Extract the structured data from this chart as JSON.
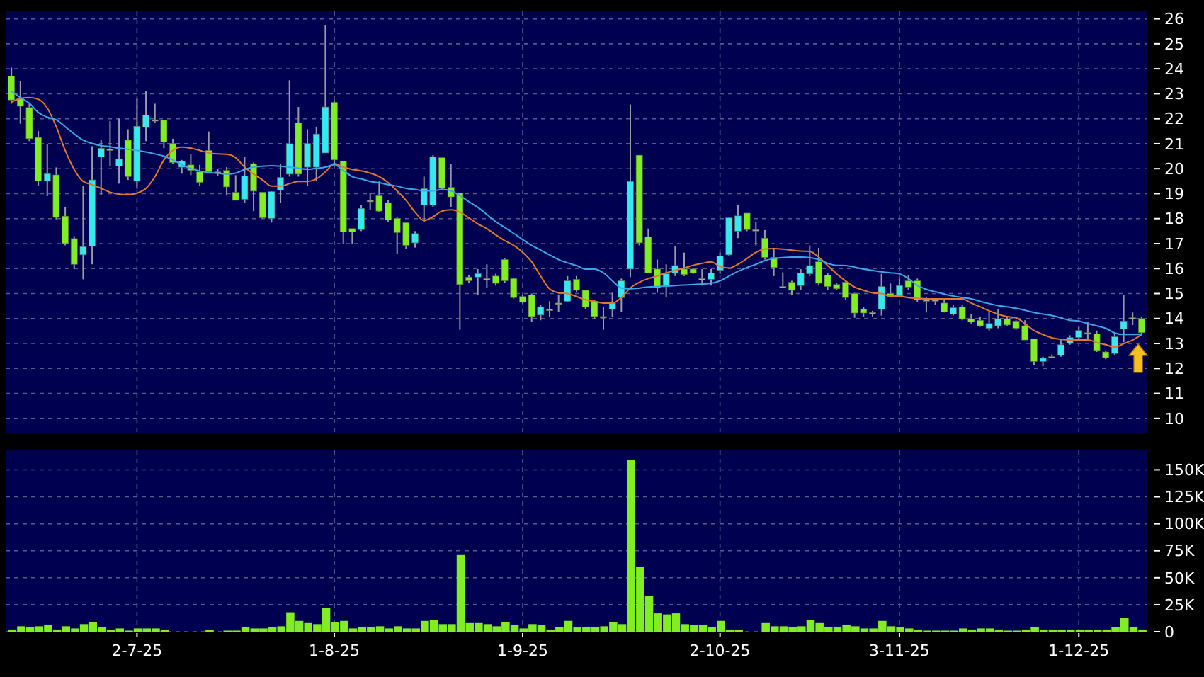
{
  "chart_data": [
    {
      "type": "candlestick",
      "categories": [
        null,
        null,
        null,
        null,
        null,
        null,
        null,
        null,
        null,
        null,
        null,
        null,
        null,
        null,
        null,
        null,
        null,
        null,
        null,
        null,
        null,
        null,
        null,
        null,
        null,
        null,
        null,
        null,
        null,
        null,
        null,
        null,
        null,
        null,
        null,
        null,
        null,
        null,
        null,
        null,
        null,
        null,
        null,
        null,
        null,
        null,
        null,
        null,
        null,
        null,
        null,
        null,
        null,
        null,
        null,
        null,
        null,
        null,
        null,
        null,
        null,
        null,
        null,
        null,
        null,
        null,
        null,
        null,
        null,
        null,
        null,
        null,
        null,
        null,
        null,
        null,
        null,
        null,
        null,
        null,
        null,
        null,
        null,
        null,
        null,
        null,
        null,
        null,
        null,
        null,
        null,
        null,
        null,
        null,
        null,
        null,
        null,
        null,
        null,
        null,
        null,
        null,
        null,
        null,
        null,
        null,
        null,
        null,
        null,
        null,
        null,
        null,
        null,
        null,
        null,
        null,
        null,
        null,
        null,
        null,
        null,
        null,
        null,
        null,
        null,
        null,
        null
      ],
      "ylim": [
        9.4,
        26.3
      ],
      "yticks": [
        10,
        11,
        12,
        13,
        14,
        15,
        16,
        17,
        18,
        19,
        20,
        21,
        22,
        23,
        24,
        25,
        26
      ],
      "grid": true,
      "tick_labels": "y",
      "series": [
        {
          "ohlc": [
            [
              23.7,
              24.05,
              22.6,
              22.75
            ],
            [
              22.8,
              23.5,
              21.8,
              22.5
            ],
            [
              22.45,
              22.6,
              21.1,
              21.2
            ],
            [
              21.25,
              21.5,
              19.3,
              19.5
            ],
            [
              19.5,
              21.0,
              18.9,
              19.8
            ],
            [
              19.75,
              20.05,
              17.97,
              18.05
            ],
            [
              18.1,
              18.45,
              16.93,
              17.0
            ],
            [
              17.2,
              17.3,
              15.98,
              16.17
            ],
            [
              16.55,
              19.3,
              15.57,
              16.88
            ],
            [
              16.9,
              20.9,
              16.17,
              19.55
            ],
            [
              20.48,
              21.15,
              18.96,
              20.82
            ],
            [
              20.78,
              21.9,
              20.1,
              20.78
            ],
            [
              20.1,
              22.0,
              19.4,
              20.38
            ],
            [
              21.14,
              21.58,
              19.55,
              19.68
            ],
            [
              19.5,
              22.8,
              19.2,
              21.7
            ],
            [
              21.67,
              23.1,
              21.1,
              22.15
            ],
            [
              21.96,
              22.6,
              21.85,
              21.96
            ],
            [
              21.94,
              21.94,
              20.82,
              21.07
            ],
            [
              21.01,
              21.2,
              20.2,
              20.25
            ],
            [
              20.06,
              20.35,
              19.8,
              20.3
            ],
            [
              20.15,
              20.57,
              19.74,
              19.93
            ],
            [
              19.87,
              20.15,
              19.3,
              19.45
            ],
            [
              20.73,
              21.49,
              19.82,
              19.87
            ],
            [
              19.87,
              20.0,
              19.7,
              19.87
            ],
            [
              19.93,
              20.06,
              18.92,
              19.27
            ],
            [
              19.05,
              19.74,
              18.73,
              18.73
            ],
            [
              18.77,
              20.48,
              18.64,
              19.7
            ],
            [
              20.2,
              20.25,
              18.3,
              19.1
            ],
            [
              19.06,
              19.06,
              18.0,
              18.03
            ],
            [
              18.01,
              19.1,
              17.84,
              19.08
            ],
            [
              19.13,
              20.2,
              18.64,
              19.65
            ],
            [
              19.78,
              23.54,
              19.68,
              21.0
            ],
            [
              21.83,
              22.47,
              19.68,
              19.78
            ],
            [
              20.06,
              21.58,
              19.3,
              21.01
            ],
            [
              20.06,
              21.68,
              19.49,
              21.39
            ],
            [
              20.63,
              25.75,
              20.63,
              22.47
            ],
            [
              22.66,
              22.72,
              20.16,
              20.35
            ],
            [
              20.31,
              20.31,
              16.99,
              17.46
            ],
            [
              17.6,
              17.6,
              16.99,
              17.46
            ],
            [
              17.56,
              18.54,
              17.5,
              18.41
            ],
            [
              18.73,
              19.02,
              18.35,
              18.73
            ],
            [
              18.92,
              19.49,
              18.26,
              18.3
            ],
            [
              18.64,
              18.73,
              17.88,
              17.94
            ],
            [
              18.01,
              18.07,
              16.59,
              17.44
            ],
            [
              17.84,
              17.84,
              16.78,
              16.93
            ],
            [
              17.03,
              17.5,
              16.84,
              17.4
            ],
            [
              18.54,
              19.68,
              17.88,
              19.2
            ],
            [
              18.54,
              20.54,
              18.45,
              20.48
            ],
            [
              20.44,
              20.44,
              19.17,
              19.21
            ],
            [
              19.25,
              20.2,
              18.45,
              18.87
            ],
            [
              19.02,
              19.02,
              13.55,
              15.36
            ],
            [
              15.66,
              15.74,
              15.41,
              15.51
            ],
            [
              15.66,
              15.98,
              14.94,
              15.8
            ],
            [
              15.6,
              16.17,
              15.22,
              15.6
            ],
            [
              15.7,
              15.79,
              15.32,
              15.41
            ],
            [
              16.36,
              16.4,
              15.41,
              15.51
            ],
            [
              15.6,
              15.64,
              14.8,
              14.84
            ],
            [
              14.88,
              14.94,
              14.6,
              14.65
            ],
            [
              14.94,
              15.0,
              13.86,
              14.08
            ],
            [
              14.14,
              14.56,
              13.93,
              14.47
            ],
            [
              14.37,
              14.69,
              14.08,
              14.37
            ],
            [
              14.62,
              14.94,
              14.27,
              14.62
            ],
            [
              14.69,
              15.7,
              14.65,
              15.51
            ],
            [
              15.57,
              15.7,
              15.07,
              15.13
            ],
            [
              15.13,
              15.13,
              14.37,
              14.46
            ],
            [
              14.69,
              14.75,
              13.98,
              14.08
            ],
            [
              14.08,
              14.46,
              13.55,
              14.08
            ],
            [
              14.37,
              15.03,
              14.08,
              14.62
            ],
            [
              14.84,
              15.6,
              14.27,
              15.51
            ],
            [
              15.98,
              22.57,
              15.66,
              19.49
            ],
            [
              20.54,
              20.54,
              16.93,
              17.03
            ],
            [
              17.27,
              17.6,
              15.83,
              15.83
            ],
            [
              15.98,
              16.36,
              15.03,
              15.22
            ],
            [
              15.32,
              16.17,
              14.84,
              15.79
            ],
            [
              15.83,
              16.9,
              15.7,
              16.12
            ],
            [
              15.98,
              16.64,
              15.7,
              15.76
            ],
            [
              15.98,
              16.02,
              15.79,
              15.83
            ],
            [
              15.6,
              15.98,
              15.32,
              15.6
            ],
            [
              15.57,
              15.98,
              15.32,
              15.83
            ],
            [
              15.93,
              16.64,
              15.79,
              16.51
            ],
            [
              16.55,
              18.07,
              16.51,
              18.03
            ],
            [
              17.5,
              18.54,
              17.22,
              18.11
            ],
            [
              18.22,
              18.22,
              17.5,
              17.56
            ],
            [
              17.56,
              17.88,
              16.93,
              17.56
            ],
            [
              17.22,
              17.54,
              16.36,
              16.45
            ],
            [
              16.45,
              16.83,
              15.7,
              16.04
            ],
            [
              15.28,
              15.85,
              15.22,
              15.28
            ],
            [
              15.45,
              15.51,
              14.94,
              15.13
            ],
            [
              15.32,
              15.98,
              15.13,
              15.83
            ],
            [
              15.79,
              16.93,
              15.7,
              16.12
            ],
            [
              16.27,
              16.83,
              15.32,
              15.41
            ],
            [
              15.74,
              15.83,
              15.13,
              15.28
            ],
            [
              15.36,
              15.41,
              15.13,
              15.19
            ],
            [
              15.45,
              15.51,
              14.75,
              14.84
            ],
            [
              15.0,
              15.03,
              14.03,
              14.22
            ],
            [
              14.37,
              14.46,
              14.08,
              14.22
            ],
            [
              14.24,
              14.31,
              14.08,
              14.24
            ],
            [
              14.37,
              15.79,
              14.12,
              15.28
            ],
            [
              15.0,
              15.4,
              14.84,
              14.88
            ],
            [
              14.9,
              15.6,
              14.84,
              15.32
            ],
            [
              15.51,
              15.74,
              15.13,
              15.26
            ],
            [
              15.51,
              15.6,
              14.65,
              14.75
            ],
            [
              14.75,
              14.84,
              14.24,
              14.75
            ],
            [
              14.75,
              14.8,
              14.56,
              14.75
            ],
            [
              14.62,
              14.75,
              14.24,
              14.27
            ],
            [
              14.18,
              14.56,
              14.12,
              14.43
            ],
            [
              14.46,
              14.56,
              13.93,
              13.99
            ],
            [
              13.99,
              14.18,
              13.8,
              13.86
            ],
            [
              13.93,
              14.08,
              13.67,
              13.71
            ],
            [
              13.61,
              14.27,
              13.52,
              13.8
            ],
            [
              13.71,
              14.37,
              13.61,
              13.99
            ],
            [
              13.99,
              14.08,
              13.71,
              13.74
            ],
            [
              13.9,
              13.93,
              13.55,
              13.61
            ],
            [
              13.71,
              13.93,
              13.14,
              13.14
            ],
            [
              13.18,
              13.18,
              12.15,
              12.28
            ],
            [
              12.28,
              12.47,
              12.09,
              12.41
            ],
            [
              12.47,
              12.56,
              12.41,
              12.47
            ],
            [
              12.53,
              13.14,
              12.47,
              12.95
            ],
            [
              13.01,
              13.33,
              12.95,
              13.24
            ],
            [
              13.24,
              13.67,
              13.14,
              13.52
            ],
            [
              13.43,
              13.86,
              13.14,
              13.43
            ],
            [
              13.39,
              13.52,
              12.66,
              12.72
            ],
            [
              12.66,
              12.72,
              12.37,
              12.43
            ],
            [
              12.6,
              13.37,
              12.53,
              13.27
            ],
            [
              13.58,
              14.94,
              13.05,
              13.9
            ],
            [
              14.03,
              14.24,
              13.74,
              14.03
            ],
            [
              14.0,
              14.08,
              13.37,
              13.43
            ]
          ],
          "colors": [
            "#80ee22",
            "#80ee22",
            "#80ee22",
            "#80ee22",
            "#38e8f0",
            "#80ee22",
            "#80ee22",
            "#80ee22",
            "#38e8f0",
            "#38e8f0",
            "#38e8f0",
            "#a8a8a8",
            "#38e8f0",
            "#80ee22",
            "#38e8f0",
            "#38e8f0",
            "#a8a8a8",
            "#80ee22",
            "#80ee22",
            "#38e8f0",
            "#80ee22",
            "#80ee22",
            "#80ee22",
            "#a8a8a8",
            "#80ee22",
            "#80ee22",
            "#38e8f0",
            "#80ee22",
            "#80ee22",
            "#38e8f0",
            "#38e8f0",
            "#38e8f0",
            "#80ee22",
            "#38e8f0",
            "#38e8f0",
            "#38e8f0",
            "#80ee22",
            "#80ee22",
            "#80ee22",
            "#38e8f0",
            "#a8a8a8",
            "#80ee22",
            "#80ee22",
            "#80ee22",
            "#80ee22",
            "#38e8f0",
            "#38e8f0",
            "#38e8f0",
            "#80ee22",
            "#80ee22",
            "#80ee22",
            "#80ee22",
            "#38e8f0",
            "#a8a8a8",
            "#80ee22",
            "#80ee22",
            "#80ee22",
            "#80ee22",
            "#80ee22",
            "#38e8f0",
            "#a8a8a8",
            "#a8a8a8",
            "#38e8f0",
            "#80ee22",
            "#80ee22",
            "#80ee22",
            "#a8a8a8",
            "#38e8f0",
            "#38e8f0",
            "#38e8f0",
            "#80ee22",
            "#80ee22",
            "#80ee22",
            "#38e8f0",
            "#38e8f0",
            "#80ee22",
            "#80ee22",
            "#a8a8a8",
            "#38e8f0",
            "#38e8f0",
            "#38e8f0",
            "#38e8f0",
            "#80ee22",
            "#a8a8a8",
            "#80ee22",
            "#80ee22",
            "#a8a8a8",
            "#80ee22",
            "#38e8f0",
            "#38e8f0",
            "#80ee22",
            "#80ee22",
            "#80ee22",
            "#80ee22",
            "#80ee22",
            "#80ee22",
            "#a8a8a8",
            "#38e8f0",
            "#80ee22",
            "#38e8f0",
            "#80ee22",
            "#80ee22",
            "#a8a8a8",
            "#a8a8a8",
            "#80ee22",
            "#38e8f0",
            "#80ee22",
            "#80ee22",
            "#80ee22",
            "#38e8f0",
            "#38e8f0",
            "#80ee22",
            "#80ee22",
            "#80ee22",
            "#80ee22",
            "#38e8f0",
            "#a8a8a8",
            "#38e8f0",
            "#38e8f0",
            "#38e8f0",
            "#a8a8a8",
            "#80ee22",
            "#80ee22",
            "#38e8f0",
            "#38e8f0",
            "#a8a8a8",
            "#80ee22"
          ]
        },
        {
          "type": "line",
          "color": "#e07830",
          "values": [
            22.66,
            22.81,
            22.85,
            22.78,
            22.43,
            21.68,
            20.73,
            19.97,
            19.49,
            19.36,
            19.21,
            19.06,
            18.98,
            18.96,
            19.02,
            19.21,
            19.68,
            20.35,
            20.73,
            20.86,
            20.82,
            20.73,
            20.63,
            20.59,
            20.58,
            20.44,
            20.06,
            19.78,
            19.55,
            19.3,
            19.3,
            19.4,
            19.49,
            19.49,
            19.59,
            19.87,
            20.2,
            20.06,
            19.97,
            19.91,
            19.82,
            19.68,
            19.44,
            19.11,
            18.73,
            18.26,
            17.92,
            18.07,
            18.3,
            18.35,
            18.26,
            18.03,
            17.79,
            17.6,
            17.35,
            17.12,
            16.93,
            16.65,
            16.27,
            15.7,
            15.19,
            15.03,
            15.0,
            14.88,
            14.75,
            14.69,
            14.62,
            14.62,
            14.84,
            15.22,
            15.45,
            15.6,
            15.7,
            15.83,
            15.93,
            16.02,
            16.13,
            16.21,
            16.27,
            16.08,
            16.02,
            16.17,
            16.4,
            16.65,
            16.78,
            16.8,
            16.78,
            16.74,
            16.7,
            16.69,
            16.46,
            16.12,
            15.79,
            15.51,
            15.26,
            15.13,
            15.03,
            15.0,
            14.9,
            14.9,
            14.84,
            14.81,
            14.79,
            14.79,
            14.79,
            14.79,
            14.79,
            14.62,
            14.47,
            14.31,
            14.18,
            14.08,
            14.03,
            13.8,
            13.52,
            13.36,
            13.23,
            13.17,
            13.14,
            13.14,
            13.14,
            13.04,
            12.95,
            12.85,
            12.99,
            13.14,
            13.36
          ]
        },
        {
          "type": "line",
          "color": "#3aa8e8",
          "values": [
            23.1,
            22.85,
            22.62,
            22.25,
            22.06,
            21.96,
            21.68,
            21.39,
            21.14,
            21.01,
            20.92,
            20.88,
            20.82,
            20.78,
            20.73,
            20.67,
            20.59,
            20.5,
            20.35,
            20.16,
            20.01,
            19.91,
            19.84,
            19.82,
            19.78,
            19.82,
            19.97,
            20.06,
            20.1,
            20.12,
            20.1,
            20.06,
            20.02,
            19.97,
            20.01,
            20.06,
            20.16,
            19.93,
            19.68,
            19.59,
            19.49,
            19.44,
            19.36,
            19.3,
            19.21,
            19.17,
            19.11,
            19.11,
            19.17,
            19.11,
            18.92,
            18.68,
            18.45,
            18.17,
            17.88,
            17.65,
            17.41,
            17.16,
            16.93,
            16.74,
            16.55,
            16.36,
            16.23,
            16.12,
            15.98,
            15.98,
            15.83,
            15.51,
            15.22,
            15.19,
            15.22,
            15.26,
            15.28,
            15.3,
            15.32,
            15.34,
            15.36,
            15.38,
            15.41,
            15.51,
            15.7,
            15.89,
            16.04,
            16.17,
            16.32,
            16.4,
            16.44,
            16.46,
            16.46,
            16.44,
            16.36,
            16.21,
            16.13,
            16.12,
            16.06,
            15.98,
            15.93,
            15.87,
            15.83,
            15.79,
            15.6,
            15.32,
            15.17,
            15.07,
            14.98,
            14.9,
            14.84,
            14.79,
            14.69,
            14.6,
            14.52,
            14.47,
            14.41,
            14.33,
            14.24,
            14.18,
            14.12,
            14.03,
            13.93,
            13.9,
            13.8,
            13.71,
            13.61,
            13.42,
            13.36,
            13.36,
            13.36
          ]
        }
      ]
    },
    {
      "type": "bar",
      "categories": [
        null,
        null,
        null,
        null,
        null,
        null,
        null,
        null,
        null,
        null,
        null,
        null,
        null,
        null,
        "2-7-25",
        null,
        null,
        null,
        null,
        null,
        null,
        null,
        null,
        null,
        null,
        null,
        null,
        null,
        null,
        null,
        null,
        null,
        null,
        null,
        null,
        null,
        "1-8-25",
        null,
        null,
        null,
        null,
        null,
        null,
        null,
        null,
        null,
        null,
        null,
        null,
        null,
        null,
        null,
        null,
        null,
        null,
        null,
        null,
        "1-9-25",
        null,
        null,
        null,
        null,
        null,
        null,
        null,
        null,
        null,
        null,
        null,
        null,
        null,
        null,
        null,
        null,
        null,
        null,
        null,
        null,
        null,
        "2-10-25",
        null,
        null,
        null,
        null,
        null,
        null,
        null,
        null,
        null,
        null,
        null,
        null,
        null,
        null,
        null,
        null,
        null,
        null,
        null,
        "3-11-25",
        null,
        null,
        null,
        null,
        null,
        null,
        null,
        null,
        null,
        null,
        null,
        null,
        null,
        null,
        null,
        null,
        null,
        null,
        null,
        "1-12-25",
        null,
        null,
        null,
        null,
        null,
        null,
        null
      ],
      "color": "#80ee22",
      "ylim": [
        0,
        168
      ],
      "yticks": [
        0,
        {
          "value": 25,
          "label": "25K"
        },
        {
          "value": 50,
          "label": "50K"
        },
        {
          "value": 75,
          "label": "75K"
        },
        {
          "value": 100,
          "label": "100K"
        },
        {
          "value": 125,
          "label": "125K"
        },
        {
          "value": 150,
          "label": "150K"
        }
      ],
      "grid": true,
      "values": [
        2,
        5,
        4,
        5,
        6,
        2,
        5,
        3,
        7,
        9,
        4,
        2,
        3,
        1,
        3,
        3,
        3,
        2,
        0,
        0,
        0,
        0,
        2,
        0,
        1,
        1,
        4,
        3,
        3,
        4,
        5,
        18,
        10,
        8,
        7,
        22,
        9,
        10,
        3,
        4,
        4,
        5,
        3,
        5,
        3,
        3,
        10,
        11,
        7,
        7,
        71,
        8,
        8,
        7,
        5,
        9,
        6,
        3,
        7,
        6,
        2,
        4,
        10,
        4,
        4,
        4,
        5,
        9,
        7,
        159,
        60,
        33,
        17,
        16,
        17,
        7,
        6,
        6,
        4,
        10,
        2,
        2,
        0,
        0,
        8,
        5,
        5,
        4,
        5,
        11,
        8,
        4,
        4,
        6,
        5,
        3,
        3,
        10,
        5,
        4,
        3,
        2,
        1,
        1,
        1,
        1,
        3,
        2,
        3,
        3,
        2,
        1,
        1,
        2,
        4,
        2,
        2,
        2,
        2,
        2,
        2,
        2,
        2,
        4,
        13,
        4,
        2
      ]
    }
  ]
}
